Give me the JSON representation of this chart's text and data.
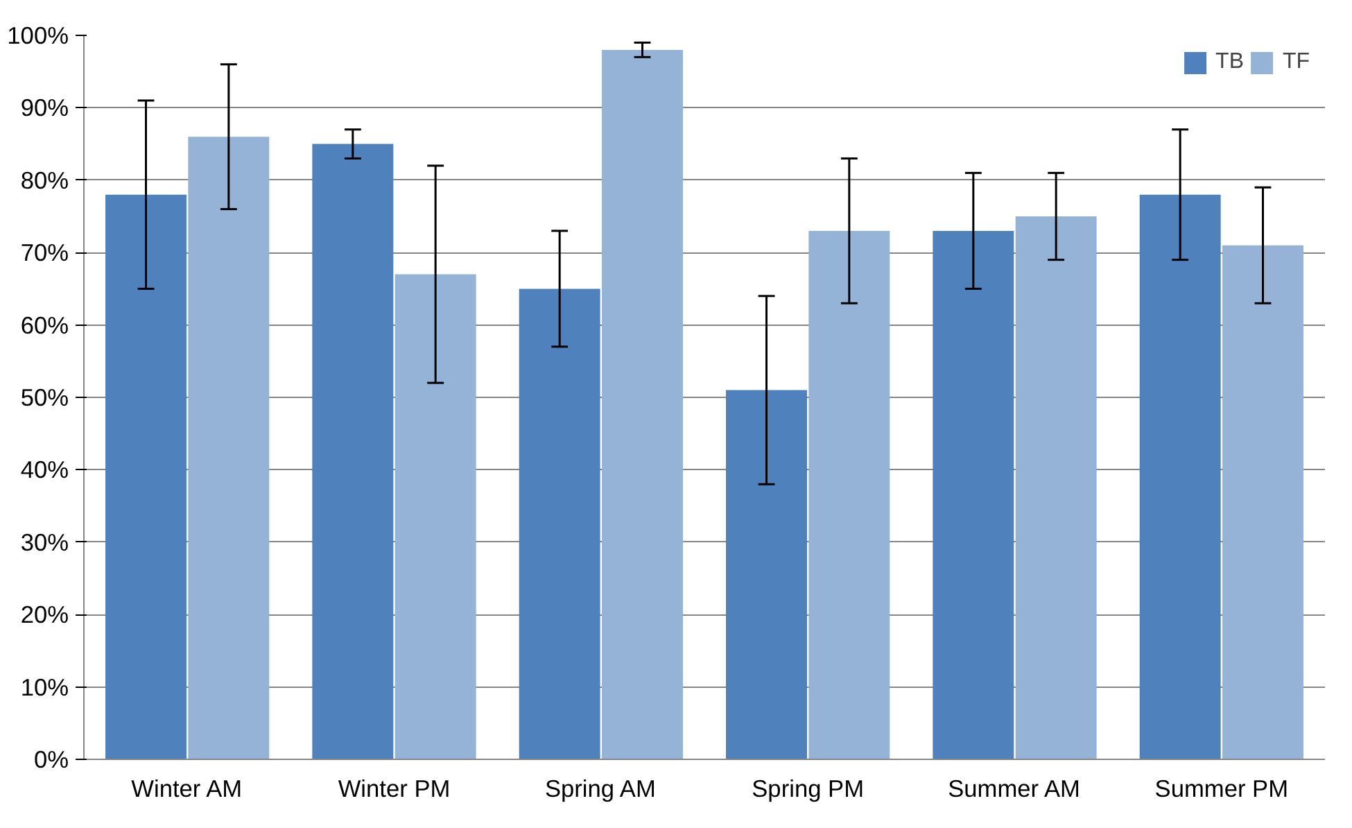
{
  "chart_data": {
    "type": "bar",
    "categories": [
      "Winter AM",
      "Winter PM",
      "Spring AM",
      "Spring PM",
      "Summer AM",
      "Summer PM"
    ],
    "series": [
      {
        "name": "TB",
        "color": "#4f81bd",
        "values": [
          78,
          85,
          65,
          51,
          73,
          78
        ],
        "errors": [
          [
            65,
            91
          ],
          [
            83,
            87
          ],
          [
            57,
            73
          ],
          [
            38,
            64
          ],
          [
            65,
            81
          ],
          [
            69,
            87
          ]
        ]
      },
      {
        "name": "TF",
        "color": "#95b3d7",
        "values": [
          86,
          67,
          98,
          73,
          75,
          71
        ],
        "errors": [
          [
            76,
            96
          ],
          [
            52,
            82
          ],
          [
            97,
            99
          ],
          [
            63,
            83
          ],
          [
            69,
            81
          ],
          [
            63,
            79
          ]
        ]
      }
    ],
    "ylim": [
      0,
      100
    ],
    "yticks": [
      {
        "value": 0,
        "label": "0%"
      },
      {
        "value": 10,
        "label": "10%"
      },
      {
        "value": 20,
        "label": "20%"
      },
      {
        "value": 30,
        "label": "30%"
      },
      {
        "value": 40,
        "label": "40%"
      },
      {
        "value": 50,
        "label": "50%"
      },
      {
        "value": 60,
        "label": "60%"
      },
      {
        "value": 70,
        "label": "70%"
      },
      {
        "value": 80,
        "label": "80%"
      },
      {
        "value": 90,
        "label": "90%"
      },
      {
        "value": 100,
        "label": "100%"
      }
    ],
    "grid": "y",
    "legend": "top right"
  }
}
